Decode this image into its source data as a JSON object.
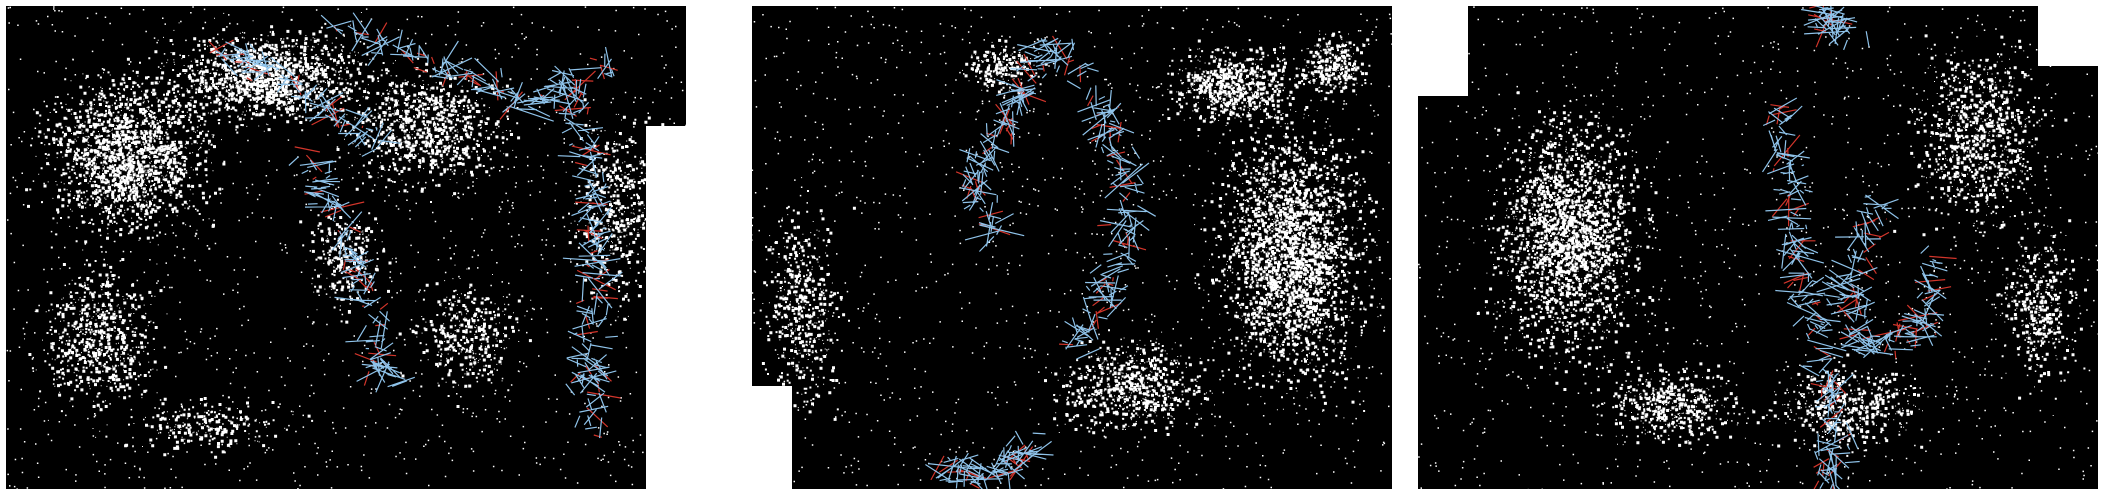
{
  "figure": {
    "panel_count": 3,
    "colors": {
      "background": "#000000",
      "points": "#ffffff",
      "trajectory_estimated": "#8fc3ea",
      "trajectory_reference": "#d2352b",
      "margin": "#ffffff"
    }
  }
}
